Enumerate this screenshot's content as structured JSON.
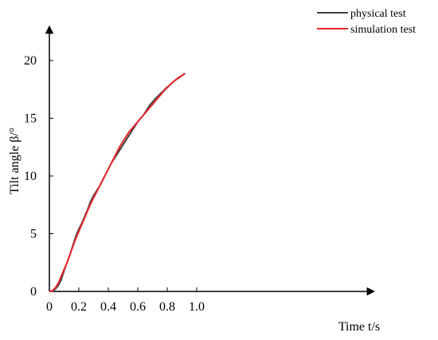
{
  "chart_data": {
    "type": "line",
    "title": "",
    "xlabel": "Time t/s",
    "ylabel": "Tilt angle β/°",
    "xlim": [
      0,
      1.1
    ],
    "ylim": [
      0,
      22
    ],
    "x_ticks": [
      0,
      0.2,
      0.4,
      0.6,
      0.8,
      1.0
    ],
    "x_tick_labels": [
      "0",
      "0.2",
      "0.4",
      "0.6",
      "0.8",
      "1.0"
    ],
    "y_ticks": [
      0,
      5,
      10,
      15,
      20
    ],
    "y_tick_labels": [
      "0",
      "5",
      "10",
      "15",
      "20"
    ],
    "grid": false,
    "legend_position": "top-right",
    "series": [
      {
        "name": "physical test",
        "color": "#404040",
        "x": [
          0,
          0.02,
          0.04,
          0.06,
          0.08,
          0.1,
          0.12,
          0.14,
          0.16,
          0.18,
          0.2,
          0.22,
          0.24,
          0.26,
          0.28,
          0.3,
          0.32,
          0.34,
          0.36,
          0.38,
          0.4,
          0.42,
          0.44,
          0.46,
          0.48,
          0.5,
          0.52,
          0.54,
          0.56,
          0.58,
          0.6,
          0.62,
          0.64,
          0.66,
          0.68,
          0.7,
          0.72,
          0.74,
          0.76,
          0.78,
          0.8,
          0.82,
          0.84,
          0.86,
          0.88,
          0.9,
          0.92
        ],
        "y": [
          0,
          0.05,
          0.2,
          0.5,
          1.0,
          1.8,
          2.5,
          3.2,
          4.0,
          4.8,
          5.4,
          5.9,
          6.5,
          7.1,
          7.8,
          8.3,
          8.7,
          9.1,
          9.6,
          10.1,
          10.6,
          11.1,
          11.5,
          11.9,
          12.3,
          12.7,
          13.1,
          13.5,
          13.9,
          14.3,
          14.7,
          15.0,
          15.3,
          15.7,
          16.1,
          16.4,
          16.7,
          16.95,
          17.2,
          17.45,
          17.7,
          17.9,
          18.15,
          18.35,
          18.5,
          18.7,
          18.85
        ]
      },
      {
        "name": "simulation test",
        "color": "#e8262b",
        "x": [
          0,
          0.02,
          0.04,
          0.06,
          0.08,
          0.1,
          0.12,
          0.14,
          0.16,
          0.18,
          0.2,
          0.22,
          0.24,
          0.26,
          0.28,
          0.3,
          0.32,
          0.34,
          0.36,
          0.38,
          0.4,
          0.42,
          0.44,
          0.46,
          0.48,
          0.5,
          0.52,
          0.54,
          0.56,
          0.58,
          0.6,
          0.62,
          0.64,
          0.66,
          0.68,
          0.7,
          0.72,
          0.74,
          0.76,
          0.78,
          0.8,
          0.82,
          0.84,
          0.86,
          0.88,
          0.9,
          0.92
        ],
        "y": [
          0,
          0.05,
          0.3,
          0.7,
          1.3,
          1.9,
          2.5,
          3.2,
          3.9,
          4.6,
          5.2,
          5.8,
          6.4,
          7.0,
          7.6,
          8.1,
          8.6,
          9.1,
          9.6,
          10.1,
          10.6,
          11.1,
          11.6,
          12.1,
          12.6,
          13.0,
          13.4,
          13.8,
          14.1,
          14.4,
          14.7,
          15.0,
          15.3,
          15.6,
          15.9,
          16.2,
          16.5,
          16.8,
          17.1,
          17.4,
          17.65,
          17.9,
          18.15,
          18.35,
          18.55,
          18.7,
          18.9
        ]
      }
    ]
  }
}
